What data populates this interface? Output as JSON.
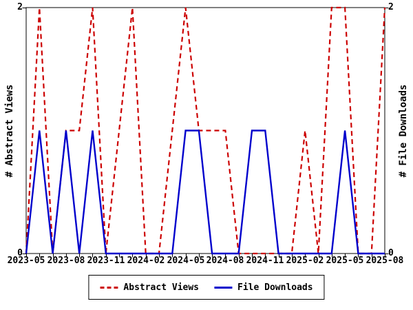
{
  "chart_data": {
    "type": "line",
    "title": "",
    "x": [
      "2023-05",
      "2023-06",
      "2023-07",
      "2023-08",
      "2023-09",
      "2023-10",
      "2023-11",
      "2023-12",
      "2024-01",
      "2024-02",
      "2024-03",
      "2024-04",
      "2024-05",
      "2024-06",
      "2024-07",
      "2024-08",
      "2024-09",
      "2024-10",
      "2024-11",
      "2024-12",
      "2025-01",
      "2025-02",
      "2025-03",
      "2025-04",
      "2025-05",
      "2025-06",
      "2025-07",
      "2025-08"
    ],
    "x_tick_every": 3,
    "series": [
      {
        "name": "Abstract Views",
        "color": "#cc0000",
        "line_style": "dashed",
        "axis": "left",
        "values": [
          0,
          2,
          0,
          1,
          1,
          2,
          0,
          1,
          2,
          0,
          0,
          1,
          2,
          1,
          1,
          1,
          0,
          0,
          0,
          0,
          0,
          1,
          0,
          2,
          2,
          0,
          0,
          2
        ]
      },
      {
        "name": "File Downloads",
        "color": "#0000cc",
        "line_style": "solid",
        "axis": "right",
        "values": [
          0,
          1,
          0,
          1,
          0,
          1,
          0,
          0,
          0,
          0,
          0,
          0,
          1,
          1,
          0,
          0,
          0,
          1,
          1,
          0,
          0,
          0,
          0,
          0,
          1,
          0,
          0,
          0
        ]
      }
    ],
    "ylabel_left": "# Abstract Views",
    "ylabel_right": "# File Downloads",
    "ylim": [
      0,
      2
    ],
    "yticks": [
      0,
      2
    ],
    "grid": false,
    "legend_position": "bottom-center",
    "frame_color": "#000000",
    "background_color": "#ffffff"
  }
}
